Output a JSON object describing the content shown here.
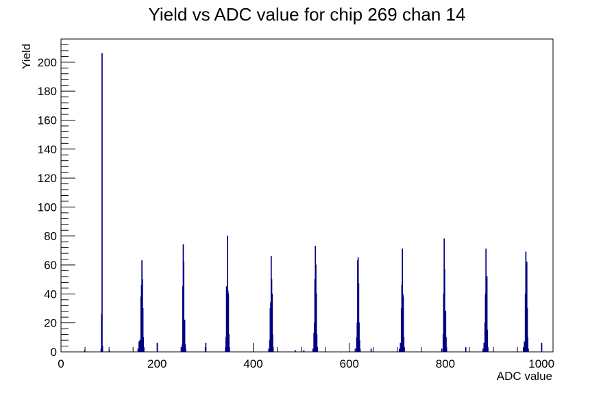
{
  "chart_data": {
    "type": "bar",
    "title": "Yield vs ADC value for chip 269 chan 14",
    "xlabel": "ADC value",
    "ylabel": "Yield",
    "xlim": [
      0,
      1024
    ],
    "ylim": [
      0,
      216
    ],
    "x_ticks": [
      0,
      200,
      400,
      600,
      800,
      1000
    ],
    "y_ticks": [
      0,
      20,
      40,
      60,
      80,
      100,
      120,
      140,
      160,
      180,
      200
    ],
    "grid": false,
    "legend": "none",
    "line_color": "#000080",
    "peaks": [
      {
        "center": 84,
        "bins": [
          [
            83,
            2
          ],
          [
            84,
            26
          ],
          [
            85,
            206
          ],
          [
            86,
            4
          ]
        ]
      },
      {
        "center": 167,
        "bins": [
          [
            160,
            2
          ],
          [
            162,
            7
          ],
          [
            164,
            8
          ],
          [
            166,
            38
          ],
          [
            167,
            46
          ],
          [
            168,
            63
          ],
          [
            169,
            50
          ],
          [
            170,
            30
          ],
          [
            171,
            10
          ],
          [
            172,
            3
          ]
        ]
      },
      {
        "center": 254,
        "bins": [
          [
            250,
            3
          ],
          [
            252,
            5
          ],
          [
            253,
            45
          ],
          [
            254,
            74
          ],
          [
            255,
            62
          ],
          [
            256,
            22
          ],
          [
            257,
            22
          ],
          [
            258,
            5
          ],
          [
            259,
            2
          ]
        ]
      },
      {
        "center": 345,
        "bins": [
          [
            342,
            3
          ],
          [
            343,
            10
          ],
          [
            344,
            45
          ],
          [
            345,
            44
          ],
          [
            346,
            80
          ],
          [
            347,
            42
          ],
          [
            348,
            40
          ],
          [
            349,
            12
          ],
          [
            350,
            3
          ]
        ]
      },
      {
        "center": 438,
        "bins": [
          [
            432,
            2
          ],
          [
            434,
            8
          ],
          [
            435,
            30
          ],
          [
            436,
            34
          ],
          [
            437,
            66
          ],
          [
            438,
            50
          ],
          [
            439,
            40
          ],
          [
            440,
            12
          ],
          [
            441,
            3
          ]
        ]
      },
      {
        "center": 529,
        "bins": [
          [
            524,
            2
          ],
          [
            526,
            13
          ],
          [
            527,
            20
          ],
          [
            528,
            50
          ],
          [
            529,
            73
          ],
          [
            530,
            60
          ],
          [
            531,
            40
          ],
          [
            532,
            12
          ],
          [
            533,
            3
          ]
        ]
      },
      {
        "center": 619,
        "bins": [
          [
            612,
            2
          ],
          [
            615,
            10
          ],
          [
            616,
            20
          ],
          [
            617,
            63
          ],
          [
            618,
            65
          ],
          [
            619,
            47
          ],
          [
            620,
            20
          ],
          [
            621,
            8
          ],
          [
            622,
            2
          ]
        ]
      },
      {
        "center": 710,
        "bins": [
          [
            704,
            2
          ],
          [
            706,
            6
          ],
          [
            708,
            30
          ],
          [
            709,
            46
          ],
          [
            710,
            71
          ],
          [
            711,
            40
          ],
          [
            712,
            38
          ],
          [
            713,
            10
          ],
          [
            714,
            3
          ]
        ]
      },
      {
        "center": 798,
        "bins": [
          [
            792,
            2
          ],
          [
            795,
            12
          ],
          [
            796,
            40
          ],
          [
            797,
            78
          ],
          [
            798,
            57
          ],
          [
            799,
            25
          ],
          [
            800,
            28
          ],
          [
            801,
            10
          ],
          [
            802,
            3
          ]
        ]
      },
      {
        "center": 884,
        "bins": [
          [
            878,
            2
          ],
          [
            880,
            6
          ],
          [
            882,
            20
          ],
          [
            883,
            40
          ],
          [
            884,
            71
          ],
          [
            885,
            50
          ],
          [
            886,
            52
          ],
          [
            887,
            15
          ],
          [
            888,
            3
          ]
        ]
      },
      {
        "center": 968,
        "bins": [
          [
            962,
            3
          ],
          [
            964,
            7
          ],
          [
            966,
            40
          ],
          [
            967,
            69
          ],
          [
            968,
            53
          ],
          [
            969,
            62
          ],
          [
            970,
            30
          ],
          [
            971,
            10
          ],
          [
            972,
            2
          ]
        ]
      }
    ],
    "isolated_counts": [
      [
        49,
        1
      ],
      [
        100,
        1
      ],
      [
        200,
        6
      ],
      [
        301,
        6
      ],
      [
        487,
        1
      ],
      [
        505,
        1
      ],
      [
        645,
        2
      ],
      [
        842,
        3
      ],
      [
        1000,
        6
      ]
    ]
  }
}
